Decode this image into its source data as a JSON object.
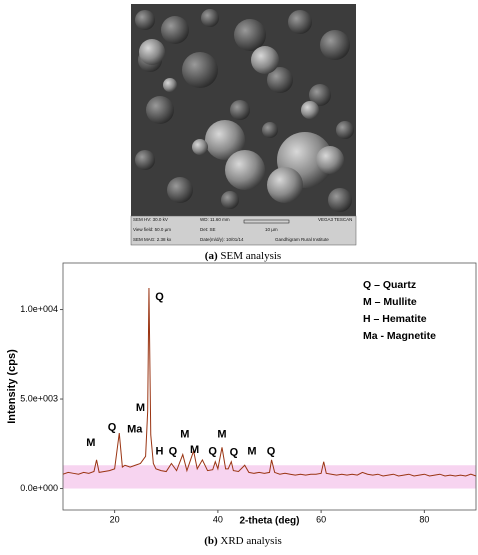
{
  "sem_panel": {
    "info": [
      "SEM HV: 30.0 kV",
      "WD: 11.60 mm",
      "VEGA3 TESCAN",
      "View field: 50.0 µm",
      "Det: SE",
      "10 µm",
      "SEM MAG: 2.38 kx",
      "Date(m/d/y): 10/01/14",
      "Gandhigram Rural Institute"
    ],
    "caption_label": "(a)",
    "caption_text": "SEM analysis"
  },
  "chart_data": {
    "type": "line",
    "caption_label": "(b)",
    "caption_text": "XRD analysis",
    "x_label": "2-theta (deg)",
    "y_label": "Intensity (cps)",
    "xlim": [
      10,
      90
    ],
    "xticks": [
      20,
      40,
      60,
      80
    ],
    "ylim": [
      -1200,
      12600
    ],
    "yticks": [
      {
        "value": 0,
        "label": "0.0e+000"
      },
      {
        "value": 5000,
        "label": "5.0e+003"
      },
      {
        "value": 10000,
        "label": "1.0e+004"
      }
    ],
    "band": [
      0,
      1300
    ],
    "band_color": "#f7d4f0",
    "legend": [
      "Q – Quartz",
      "M – Mullite",
      "H – Hematite",
      "Ma - Magnetite"
    ],
    "series": [
      {
        "name": "XRD",
        "color": "#9a3412",
        "x": [
          10,
          11,
          12,
          13,
          14,
          15,
          16,
          16.5,
          17,
          18,
          19,
          20,
          20.9,
          21.5,
          22,
          23,
          24,
          25,
          26,
          26.4,
          26.65,
          27,
          27.5,
          28,
          29,
          30,
          31,
          32,
          33.2,
          34,
          35.3,
          36,
          37,
          38,
          39,
          39.5,
          40,
          40.8,
          41.5,
          42,
          42.6,
          43,
          44,
          45.2,
          46,
          47,
          48,
          49,
          50,
          50.4,
          51,
          52,
          53,
          54,
          55,
          56,
          57,
          58,
          59,
          60,
          60.5,
          61,
          62,
          63,
          64,
          65,
          66,
          67,
          68,
          69,
          70,
          71,
          72,
          73,
          74,
          75,
          76,
          77,
          78,
          79,
          80,
          81,
          82,
          83,
          84,
          85,
          86,
          87,
          88,
          89,
          90
        ],
        "values": [
          800,
          900,
          850,
          800,
          900,
          850,
          950,
          1600,
          900,
          950,
          1000,
          1100,
          3100,
          1200,
          1300,
          1200,
          1300,
          1400,
          1800,
          4300,
          11200,
          3000,
          1400,
          1100,
          1000,
          950,
          1400,
          1000,
          1900,
          1000,
          2100,
          1100,
          1600,
          1000,
          1050,
          1500,
          1100,
          2300,
          1100,
          1100,
          1500,
          1000,
          950,
          1300,
          900,
          850,
          900,
          850,
          900,
          1600,
          900,
          800,
          850,
          800,
          750,
          800,
          750,
          800,
          800,
          850,
          1500,
          850,
          800,
          750,
          800,
          750,
          800,
          750,
          900,
          800,
          750,
          800,
          700,
          750,
          800,
          700,
          750,
          800,
          700,
          750,
          800,
          700,
          750,
          800,
          700,
          750,
          700,
          750,
          700,
          800,
          700
        ]
      }
    ],
    "annotations": [
      {
        "text": "M",
        "x": 15.4,
        "y": 2550
      },
      {
        "text": "Q",
        "x": 19.5,
        "y": 3400
      },
      {
        "text": "Ma",
        "x": 23.9,
        "y": 3300
      },
      {
        "text": "M",
        "x": 25.0,
        "y": 4500
      },
      {
        "text": "Q",
        "x": 28.7,
        "y": 10700
      },
      {
        "text": "H",
        "x": 28.7,
        "y": 2050
      },
      {
        "text": "Q",
        "x": 31.3,
        "y": 2050
      },
      {
        "text": "M",
        "x": 33.6,
        "y": 3000
      },
      {
        "text": "M",
        "x": 35.5,
        "y": 2150
      },
      {
        "text": "Q",
        "x": 39.0,
        "y": 2050
      },
      {
        "text": "M",
        "x": 40.8,
        "y": 3000
      },
      {
        "text": "Q",
        "x": 43.1,
        "y": 2000
      },
      {
        "text": "M",
        "x": 46.6,
        "y": 2050
      },
      {
        "text": "Q",
        "x": 50.3,
        "y": 2050
      }
    ]
  }
}
